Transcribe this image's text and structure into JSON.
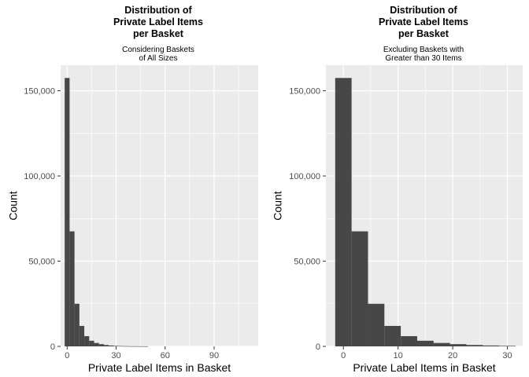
{
  "chart_data": [
    {
      "type": "bar",
      "title": [
        "Distribution of",
        "Private Label Items",
        "per Basket"
      ],
      "subtitle": [
        "Considering Baskets",
        "of All Sizes"
      ],
      "xlabel": "Private Label Items in Basket",
      "ylabel": "Count",
      "xlim": [
        -4,
        117
      ],
      "ylim": [
        0,
        165000
      ],
      "x_ticks": [
        0,
        30,
        60,
        90
      ],
      "x_tick_labels": [
        "0",
        "30",
        "60",
        "90"
      ],
      "y_ticks": [
        0,
        50000,
        100000,
        150000
      ],
      "y_tick_labels": [
        "0",
        "50,000",
        "100,000",
        "150,000"
      ],
      "bin_edges": [
        -1.5,
        1.5,
        4.5,
        7.5,
        10.5,
        13.5,
        16.5,
        19.5,
        22.5,
        25.5,
        28.5,
        31.5,
        34.5,
        37.5,
        40.5,
        43.5,
        46.5,
        49.5
      ],
      "values": [
        157500,
        67500,
        25000,
        12000,
        6000,
        3300,
        2000,
        1300,
        800,
        500,
        300,
        200,
        150,
        100,
        80,
        60,
        40
      ],
      "grid": true,
      "background": "#ebebeb",
      "bar_color": "#474747"
    },
    {
      "type": "bar",
      "title": [
        "Distribution of",
        "Private Label Items",
        "per Basket"
      ],
      "subtitle": [
        "Excluding Baskets with",
        "Greater than 30 Items"
      ],
      "xlabel": "Private Label Items in Basket",
      "ylabel": "Count",
      "xlim": [
        -3.2,
        32.8
      ],
      "ylim": [
        0,
        165000
      ],
      "x_ticks": [
        0,
        10,
        20,
        30
      ],
      "x_tick_labels": [
        "0",
        "10",
        "20",
        "30"
      ],
      "y_ticks": [
        0,
        50000,
        100000,
        150000
      ],
      "y_tick_labels": [
        "0",
        "50,000",
        "100,000",
        "150,000"
      ],
      "bin_edges": [
        -1.5,
        1.5,
        4.5,
        7.5,
        10.5,
        13.5,
        16.5,
        19.5,
        22.5,
        25.5,
        28.5,
        31.5
      ],
      "values": [
        157500,
        67500,
        25000,
        12000,
        6000,
        3300,
        2000,
        1300,
        800,
        500,
        300
      ],
      "grid": true,
      "background": "#ebebeb",
      "bar_color": "#474747"
    }
  ]
}
